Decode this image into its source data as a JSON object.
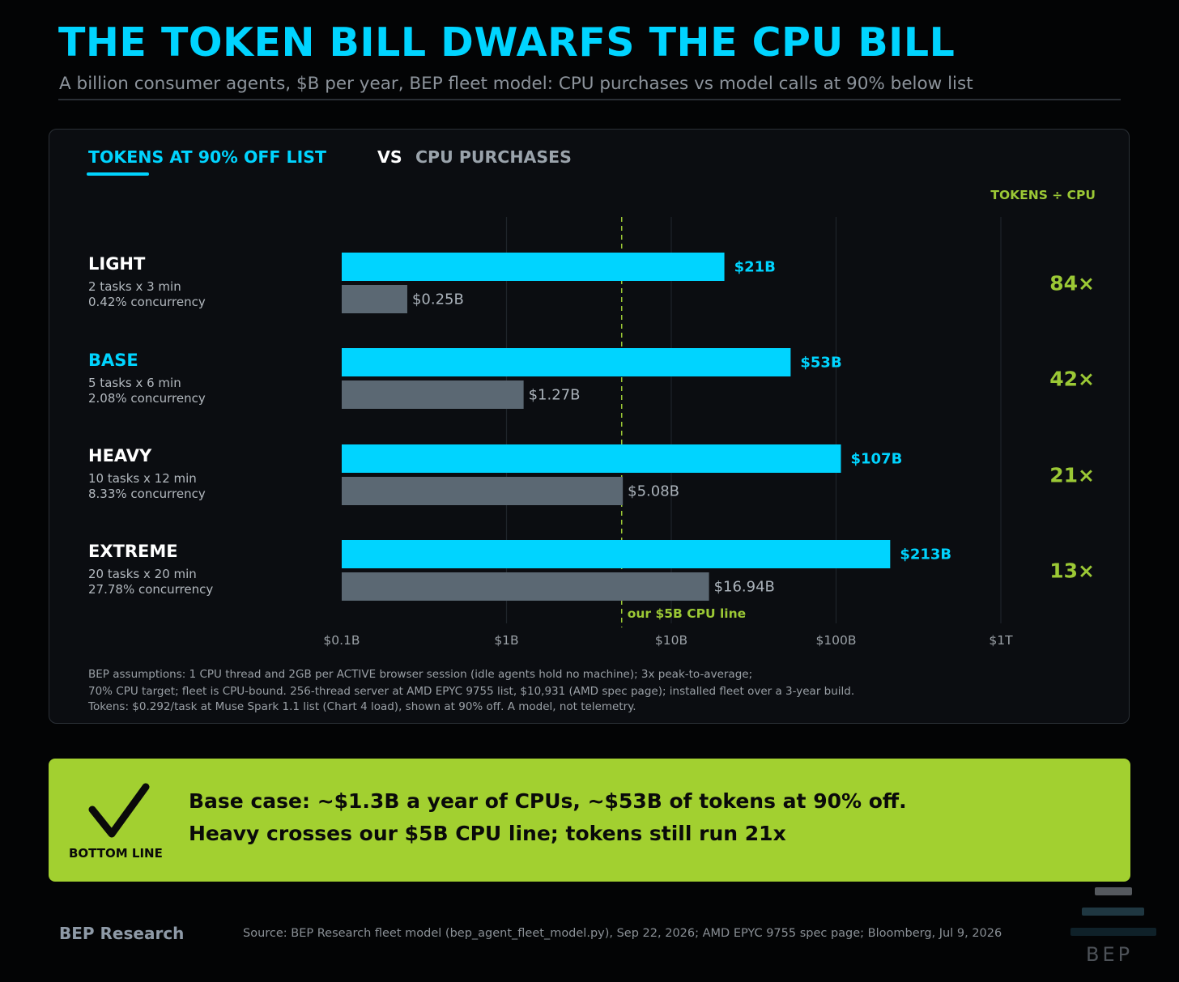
{
  "header": {
    "title": "THE TOKEN BILL DWARFS THE CPU BILL",
    "subtitle": "A billion consumer agents, $B per year, BEP fleet model: CPU purchases vs model calls at 90% below list"
  },
  "tabs": {
    "tokens": "TOKENS AT 90% OFF LIST",
    "vs": "VS",
    "cpu": "CPU PURCHASES"
  },
  "ratio_header": "TOKENS ÷ CPU",
  "categories": [
    {
      "name": "LIGHT",
      "detail1": "2 tasks x 3 min",
      "detail2": "0.42% concurrency",
      "color": "#ffffff"
    },
    {
      "name": "BASE",
      "detail1": "5 tasks x 6 min",
      "detail2": "2.08% concurrency",
      "color": "#00d4ff"
    },
    {
      "name": "HEAVY",
      "detail1": "10 tasks x 12 min",
      "detail2": "8.33% concurrency",
      "color": "#ffffff"
    },
    {
      "name": "EXTREME",
      "detail1": "20 tasks x 20 min",
      "detail2": "27.78% concurrency",
      "color": "#ffffff"
    }
  ],
  "chart_data": {
    "type": "bar",
    "orientation": "horizontal",
    "x_scale": "log",
    "xlim": [
      0.1,
      1000
    ],
    "x_ticks": [
      {
        "value": 0.1,
        "label": "$0.1B"
      },
      {
        "value": 1,
        "label": "$1B"
      },
      {
        "value": 10,
        "label": "$10B"
      },
      {
        "value": 100,
        "label": "$100B"
      },
      {
        "value": 1000,
        "label": "$1T"
      }
    ],
    "categories": [
      "LIGHT",
      "BASE",
      "HEAVY",
      "EXTREME"
    ],
    "series": [
      {
        "name": "TOKENS AT 90% OFF LIST",
        "color": "#00d4ff",
        "values": [
          21,
          53,
          107,
          213
        ],
        "labels": [
          "$21B",
          "$53B",
          "$107B",
          "$213B"
        ]
      },
      {
        "name": "CPU PURCHASES",
        "color": "#5b6873",
        "values": [
          0.25,
          1.27,
          5.08,
          16.94
        ],
        "labels": [
          "$0.25B",
          "$1.27B",
          "$5.08B",
          "$16.94B"
        ]
      }
    ],
    "ratios": [
      "84×",
      "42×",
      "21×",
      "13×"
    ],
    "reference_line": {
      "value": 5,
      "label": "our $5B CPU line",
      "color": "#9bc835"
    },
    "grid": true
  },
  "footnotes": [
    "BEP assumptions: 1 CPU thread and 2GB per ACTIVE browser session (idle agents hold no machine); 3x peak-to-average;",
    "70% CPU target; fleet is CPU-bound. 256-thread server at AMD EPYC 9755 list, $10,931 (AMD spec page); installed fleet over a 3-year build.",
    "Tokens: $0.292/task at Muse Spark 1.1 list (Chart 4 load), shown at 90% off. A model, not telemetry."
  ],
  "bottom_line": {
    "icon": "check-icon",
    "label": "BOTTOM LINE",
    "line1": "Base case: ~$1.3B a year of CPUs, ~$53B of tokens at 90% off.",
    "line2": "Heavy crosses our $5B CPU line; tokens still run 21x",
    "color": "#a2d030"
  },
  "footer": {
    "brand": "BEP Research",
    "source": "Source: BEP Research fleet model (bep_agent_fleet_model.py), Sep 22, 2026; AMD EPYC 9755 spec page; Bloomberg, Jul 9, 2026",
    "logo_text": "BEP"
  }
}
